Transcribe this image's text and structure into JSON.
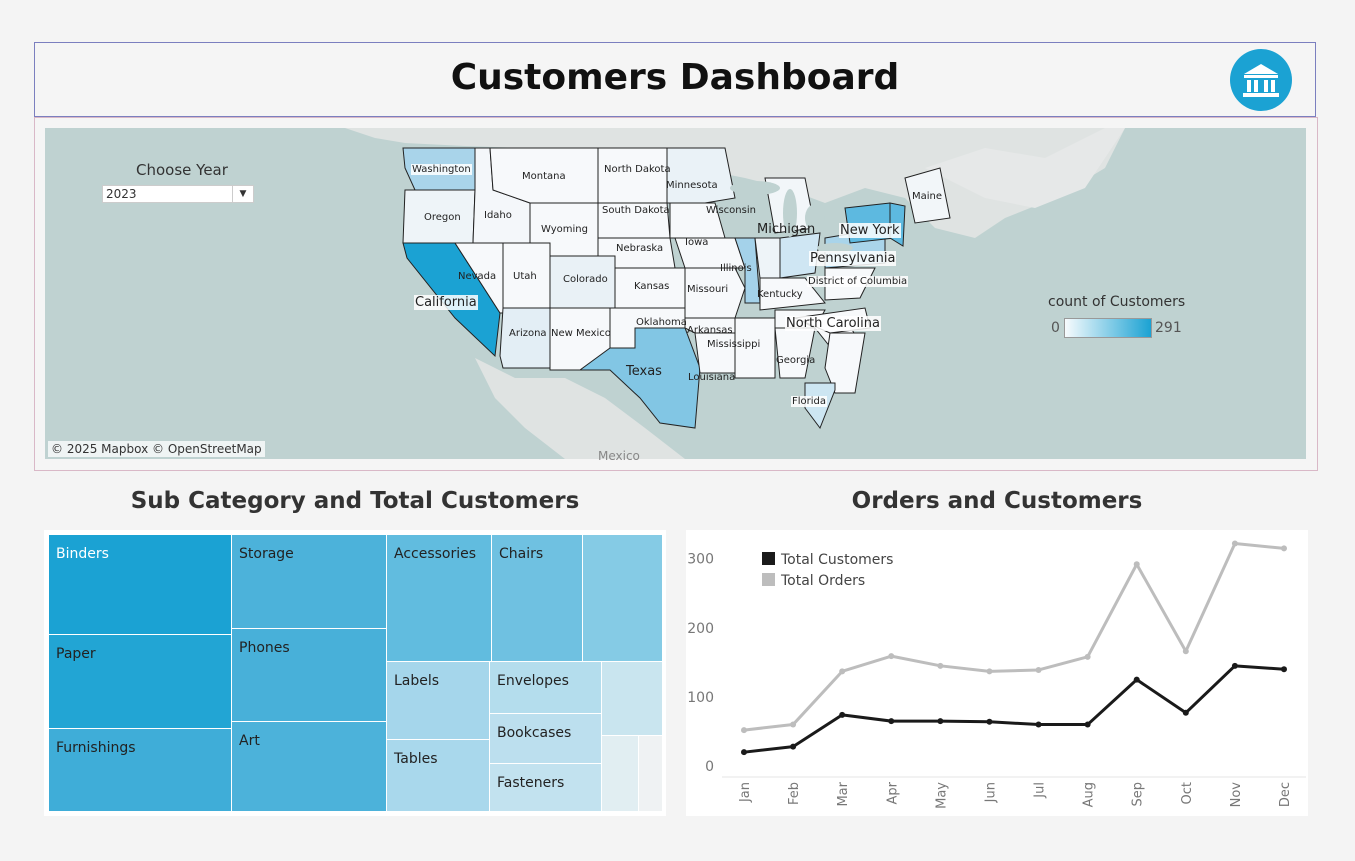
{
  "header": {
    "title": "Customers Dashboard",
    "icon": "bank-icon",
    "icon_color": "#1ba2d3"
  },
  "filter": {
    "label": "Choose Year",
    "value": "2023"
  },
  "map": {
    "attribution": "© 2025 Mapbox © OpenStreetMap",
    "country_label": "Mexico",
    "state_labels": [
      "Washington",
      "Montana",
      "North Dakota",
      "Minnesota",
      "Oregon",
      "Idaho",
      "Wyoming",
      "South Dakota",
      "Wisconsin",
      "Michigan",
      "Maine",
      "New York",
      "Iowa",
      "Nebraska",
      "Illinois",
      "Pennsylvania",
      "Nevada",
      "Utah",
      "Colorado",
      "Kansas",
      "Missouri",
      "Kentucky",
      "District of Columbia",
      "California",
      "Oklahoma",
      "North Carolina",
      "Arizona",
      "New Mexico",
      "Arkansas",
      "Mississippi",
      "Georgia",
      "Texas",
      "Louisiana",
      "Florida"
    ],
    "legend": {
      "title": "count of Customers",
      "min": "0",
      "max": "291",
      "color_low": "#f7fbfd",
      "color_high": "#1ba2d3"
    }
  },
  "treemap": {
    "title": "Sub Category and Total Customers",
    "tiles": [
      "Binders",
      "Storage",
      "Accessories",
      "Chairs",
      "Paper",
      "Phones",
      "Labels",
      "Envelopes",
      "Furnishings",
      "Art",
      "Bookcases",
      "Tables",
      "Fasteners"
    ]
  },
  "chart_data": {
    "type": "line",
    "title": "Orders and Customers",
    "categories": [
      "Jan",
      "Feb",
      "Mar",
      "Apr",
      "May",
      "Jun",
      "Jul",
      "Aug",
      "Sep",
      "Oct",
      "Nov",
      "Dec"
    ],
    "series": [
      {
        "name": "Total Customers",
        "color": "#1a1a1a",
        "values": [
          20,
          28,
          74,
          65,
          65,
          64,
          60,
          60,
          125,
          77,
          145,
          140
        ]
      },
      {
        "name": "Total Orders",
        "color": "#bdbdbd",
        "values": [
          52,
          60,
          137,
          159,
          145,
          137,
          139,
          158,
          292,
          166,
          322,
          315
        ]
      }
    ],
    "yticks": [
      0,
      100,
      200,
      300
    ],
    "ylim": [
      0,
      330
    ],
    "legend": "top-left",
    "grid": false
  }
}
